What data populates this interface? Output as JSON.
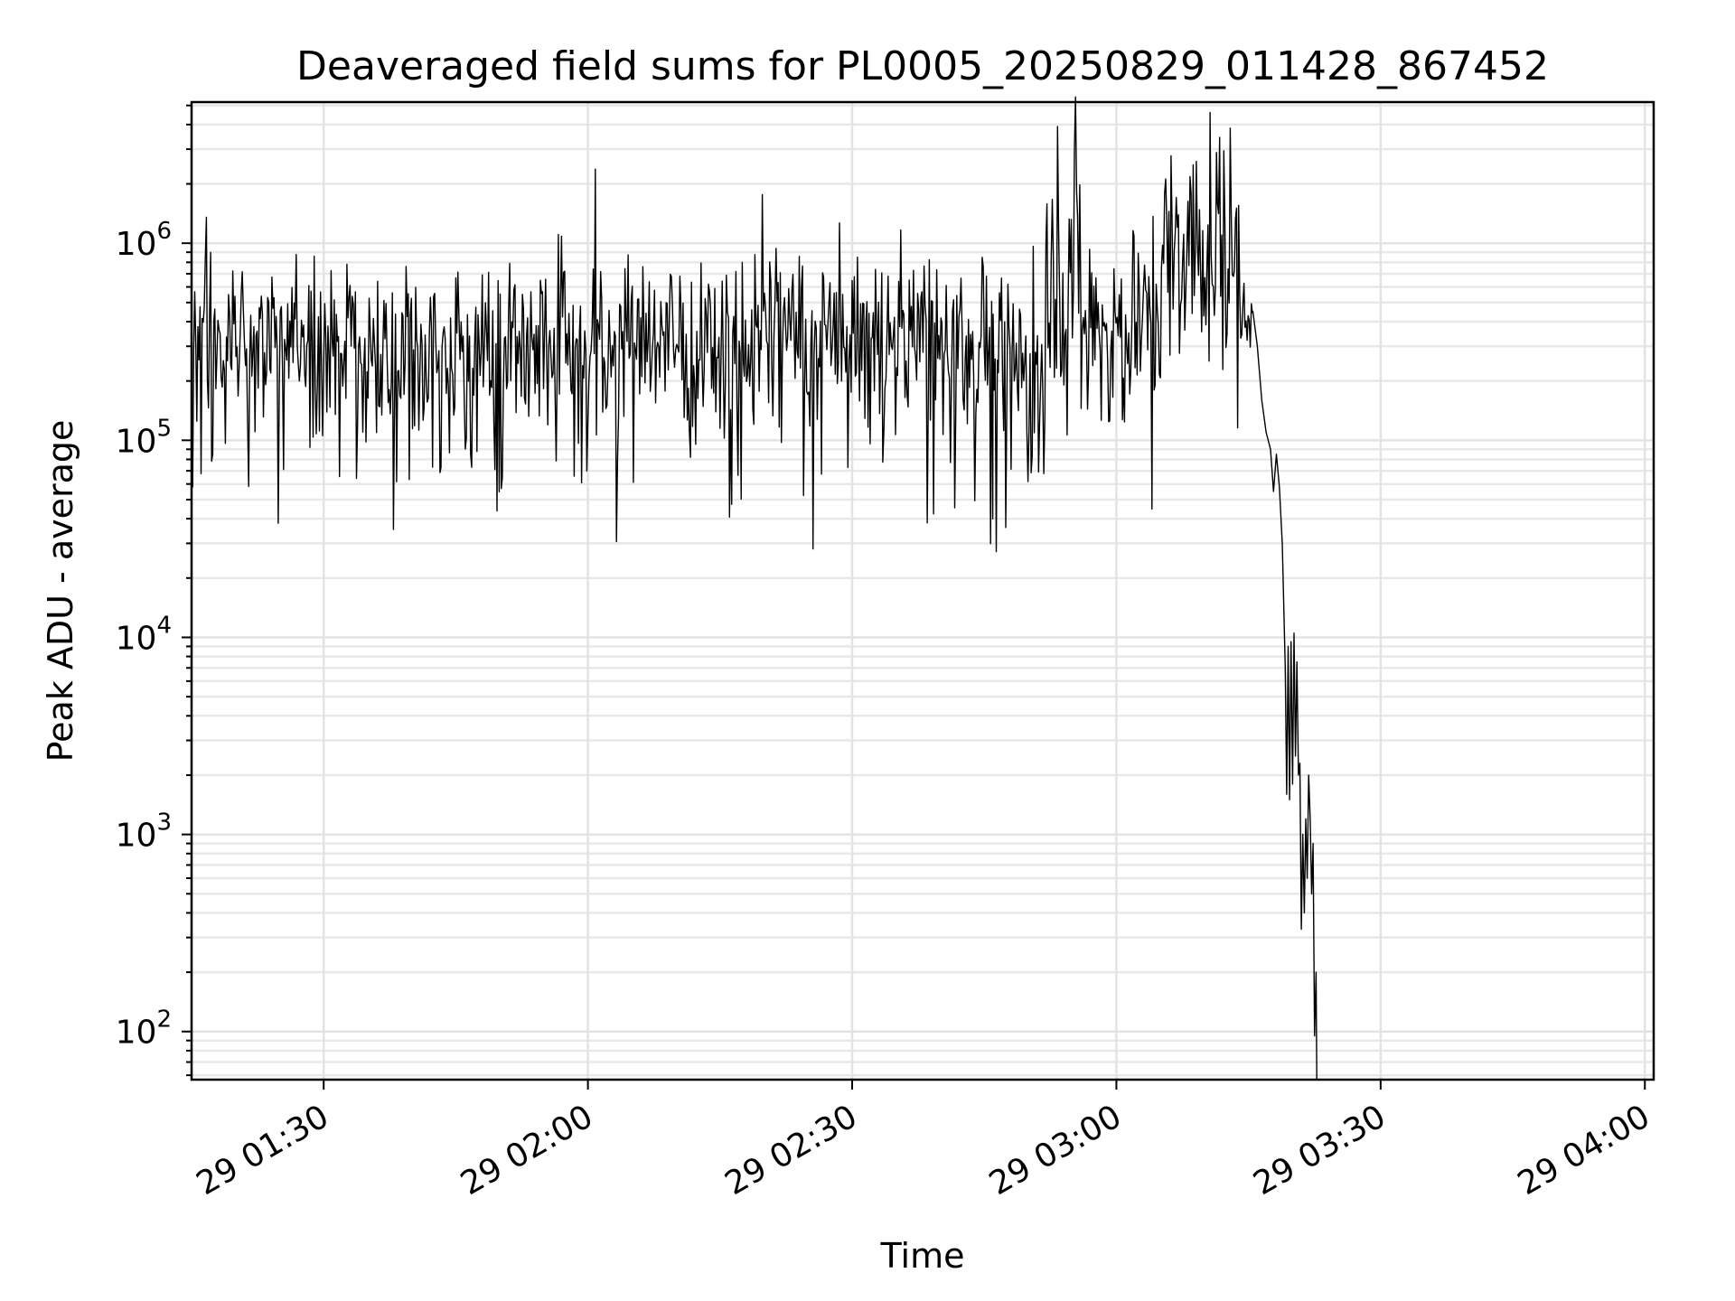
{
  "chart_data": {
    "type": "line",
    "title": "Deaveraged field sums for PL0005_20250829_011428_867452",
    "xlabel": "Time",
    "ylabel": "Peak ADU - average",
    "yscale": "log",
    "xlim": [
      "01:15",
      "04:01"
    ],
    "ylim": [
      57,
      5200000
    ],
    "grid": "on",
    "legend": "none",
    "line_color": "#000000",
    "grid_color": "#e3e3e3",
    "x_ticks": [
      {
        "time": "01:30",
        "label": "29 01:30"
      },
      {
        "time": "02:00",
        "label": "29 02:00"
      },
      {
        "time": "02:30",
        "label": "29 02:30"
      },
      {
        "time": "03:00",
        "label": "29 03:00"
      },
      {
        "time": "03:30",
        "label": "29 03:30"
      },
      {
        "time": "04:00",
        "label": "29 04:00"
      }
    ],
    "y_ticks": [
      {
        "value": 100,
        "base": "10",
        "exp": "2"
      },
      {
        "value": 1000,
        "base": "10",
        "exp": "3"
      },
      {
        "value": 10000,
        "base": "10",
        "exp": "4"
      },
      {
        "value": 100000,
        "base": "10",
        "exp": "5"
      },
      {
        "value": 1000000,
        "base": "10",
        "exp": "6"
      }
    ],
    "segments": [
      {
        "start": "01:15:00",
        "end": "02:46:00",
        "level": 330000,
        "spread": 0.22,
        "dips": 0.12
      },
      {
        "start": "02:46:00",
        "end": "02:52:00",
        "level": 250000,
        "spread": 0.26,
        "dips": 0.15
      },
      {
        "start": "02:52:00",
        "end": "02:56:00",
        "level": 900000,
        "spread": 0.3,
        "dips": 0.05
      },
      {
        "start": "02:56:00",
        "end": "03:05:00",
        "level": 380000,
        "spread": 0.25,
        "dips": 0.1
      },
      {
        "start": "03:05:00",
        "end": "03:14:00",
        "level": 900000,
        "spread": 0.3,
        "dips": 0.08
      },
      {
        "start": "03:14:00",
        "end": "03:15:30",
        "level": 500000,
        "spread": 0.12,
        "dips": 0
      }
    ],
    "tail": [
      {
        "time": "03:15:30",
        "value": 450000
      },
      {
        "time": "03:16:00",
        "value": 300000
      },
      {
        "time": "03:16:30",
        "value": 160000
      },
      {
        "time": "03:17:00",
        "value": 110000
      },
      {
        "time": "03:17:30",
        "value": 90000
      },
      {
        "time": "03:17:50",
        "value": 55000
      },
      {
        "time": "03:18:10",
        "value": 85000
      },
      {
        "time": "03:18:30",
        "value": 58000
      },
      {
        "time": "03:18:50",
        "value": 30000
      },
      {
        "time": "03:19:10",
        "value": 7000
      },
      {
        "time": "03:19:20",
        "value": 1600
      },
      {
        "time": "03:19:30",
        "value": 9000
      },
      {
        "time": "03:19:40",
        "value": 1500
      },
      {
        "time": "03:19:50",
        "value": 9500
      },
      {
        "time": "03:20:00",
        "value": 1800
      },
      {
        "time": "03:20:10",
        "value": 10500
      },
      {
        "time": "03:20:20",
        "value": 2500
      },
      {
        "time": "03:20:30",
        "value": 7500
      },
      {
        "time": "03:20:40",
        "value": 2000
      },
      {
        "time": "03:20:50",
        "value": 2300
      },
      {
        "time": "03:21:00",
        "value": 330
      },
      {
        "time": "03:21:10",
        "value": 1000
      },
      {
        "time": "03:21:20",
        "value": 400
      },
      {
        "time": "03:21:30",
        "value": 1200
      },
      {
        "time": "03:21:40",
        "value": 600
      },
      {
        "time": "03:21:50",
        "value": 2000
      },
      {
        "time": "03:22:00",
        "value": 1200
      },
      {
        "time": "03:22:10",
        "value": 500
      },
      {
        "time": "03:22:20",
        "value": 900
      },
      {
        "time": "03:22:30",
        "value": 95
      },
      {
        "time": "03:22:40",
        "value": 200
      },
      {
        "time": "03:22:45",
        "value": 57
      }
    ]
  }
}
